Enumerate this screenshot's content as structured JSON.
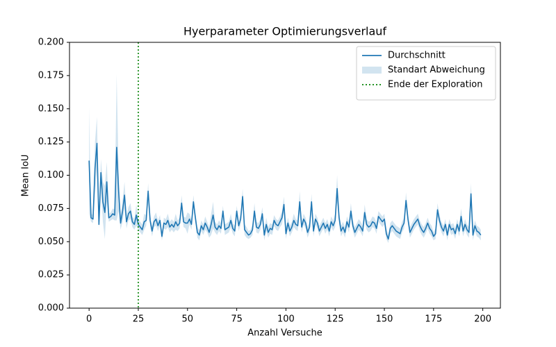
{
  "chart_data": {
    "type": "line",
    "title": "Hyerparameter Optimierungsverlauf",
    "xlabel": "Anzahl Versuche",
    "ylabel": "Mean IoU",
    "x": [
      0,
      1,
      2,
      3,
      4,
      5,
      6,
      7,
      8,
      9,
      10,
      11,
      12,
      13,
      14,
      15,
      16,
      17,
      18,
      19,
      20,
      21,
      22,
      23,
      24,
      25,
      26,
      27,
      28,
      29,
      30,
      31,
      32,
      33,
      34,
      35,
      36,
      37,
      38,
      39,
      40,
      41,
      42,
      43,
      44,
      45,
      46,
      47,
      48,
      49,
      50,
      51,
      52,
      53,
      54,
      55,
      56,
      57,
      58,
      59,
      60,
      61,
      62,
      63,
      64,
      65,
      66,
      67,
      68,
      69,
      70,
      71,
      72,
      73,
      74,
      75,
      76,
      77,
      78,
      79,
      80,
      81,
      82,
      83,
      84,
      85,
      86,
      87,
      88,
      89,
      90,
      91,
      92,
      93,
      94,
      95,
      96,
      97,
      98,
      99,
      100,
      101,
      102,
      103,
      104,
      105,
      106,
      107,
      108,
      109,
      110,
      111,
      112,
      113,
      114,
      115,
      116,
      117,
      118,
      119,
      120,
      121,
      122,
      123,
      124,
      125,
      126,
      127,
      128,
      129,
      130,
      131,
      132,
      133,
      134,
      135,
      136,
      137,
      138,
      139,
      140,
      141,
      142,
      143,
      144,
      145,
      146,
      147,
      148,
      149,
      150,
      151,
      152,
      153,
      154,
      155,
      156,
      157,
      158,
      159,
      160,
      161,
      162,
      163,
      164,
      165,
      166,
      167,
      168,
      169,
      170,
      171,
      172,
      173,
      174,
      175,
      176,
      177,
      178,
      179,
      180,
      181,
      182,
      183,
      184,
      185,
      186,
      187,
      188,
      189,
      190,
      191,
      192,
      193,
      194,
      195,
      196,
      197,
      198,
      199
    ],
    "series": [
      {
        "name": "Durchschnitt",
        "color": "#1f77b4",
        "values": [
          0.111,
          0.068,
          0.067,
          0.105,
          0.124,
          0.063,
          0.102,
          0.08,
          0.072,
          0.095,
          0.068,
          0.069,
          0.071,
          0.07,
          0.121,
          0.088,
          0.064,
          0.073,
          0.085,
          0.065,
          0.071,
          0.073,
          0.065,
          0.063,
          0.07,
          0.063,
          0.061,
          0.059,
          0.065,
          0.066,
          0.088,
          0.066,
          0.058,
          0.065,
          0.067,
          0.062,
          0.066,
          0.054,
          0.064,
          0.063,
          0.066,
          0.061,
          0.063,
          0.061,
          0.065,
          0.062,
          0.064,
          0.079,
          0.065,
          0.064,
          0.064,
          0.067,
          0.063,
          0.08,
          0.068,
          0.057,
          0.055,
          0.062,
          0.059,
          0.064,
          0.061,
          0.057,
          0.063,
          0.07,
          0.061,
          0.059,
          0.062,
          0.06,
          0.073,
          0.059,
          0.06,
          0.061,
          0.066,
          0.06,
          0.058,
          0.073,
          0.062,
          0.067,
          0.084,
          0.059,
          0.057,
          0.055,
          0.056,
          0.059,
          0.073,
          0.061,
          0.06,
          0.063,
          0.071,
          0.055,
          0.063,
          0.057,
          0.06,
          0.059,
          0.066,
          0.063,
          0.062,
          0.065,
          0.068,
          0.078,
          0.056,
          0.064,
          0.058,
          0.061,
          0.066,
          0.063,
          0.062,
          0.08,
          0.061,
          0.067,
          0.064,
          0.057,
          0.061,
          0.08,
          0.058,
          0.067,
          0.064,
          0.058,
          0.061,
          0.064,
          0.06,
          0.063,
          0.058,
          0.065,
          0.062,
          0.066,
          0.09,
          0.068,
          0.058,
          0.061,
          0.057,
          0.065,
          0.061,
          0.073,
          0.062,
          0.057,
          0.06,
          0.063,
          0.061,
          0.058,
          0.072,
          0.063,
          0.061,
          0.062,
          0.065,
          0.064,
          0.06,
          0.069,
          0.067,
          0.065,
          0.067,
          0.056,
          0.052,
          0.06,
          0.062,
          0.06,
          0.058,
          0.057,
          0.056,
          0.061,
          0.064,
          0.081,
          0.067,
          0.057,
          0.06,
          0.063,
          0.065,
          0.067,
          0.062,
          0.059,
          0.057,
          0.06,
          0.064,
          0.06,
          0.058,
          0.054,
          0.056,
          0.074,
          0.066,
          0.061,
          0.058,
          0.063,
          0.055,
          0.063,
          0.059,
          0.06,
          0.056,
          0.063,
          0.058,
          0.069,
          0.058,
          0.063,
          0.059,
          0.057,
          0.086,
          0.055,
          0.062,
          0.058,
          0.057,
          0.055
        ]
      },
      {
        "name": "Standart Abweichung",
        "color": "#1f77b4",
        "values": [
          0.04,
          0.003,
          0.003,
          0.02,
          0.02,
          0.003,
          0.01,
          0.015,
          0.02,
          0.015,
          0.003,
          0.003,
          0.004,
          0.004,
          0.055,
          0.015,
          0.005,
          0.008,
          0.01,
          0.005,
          0.005,
          0.006,
          0.004,
          0.004,
          0.008,
          0.004,
          0.004,
          0.004,
          0.006,
          0.004,
          0.006,
          0.004,
          0.004,
          0.004,
          0.005,
          0.004,
          0.004,
          0.003,
          0.004,
          0.004,
          0.005,
          0.004,
          0.004,
          0.004,
          0.006,
          0.004,
          0.004,
          0.006,
          0.004,
          0.004,
          0.008,
          0.004,
          0.004,
          0.005,
          0.004,
          0.004,
          0.004,
          0.004,
          0.004,
          0.005,
          0.004,
          0.004,
          0.008,
          0.01,
          0.004,
          0.004,
          0.004,
          0.004,
          0.004,
          0.004,
          0.004,
          0.004,
          0.005,
          0.004,
          0.004,
          0.004,
          0.004,
          0.004,
          0.006,
          0.004,
          0.004,
          0.003,
          0.003,
          0.004,
          0.006,
          0.004,
          0.004,
          0.004,
          0.005,
          0.004,
          0.005,
          0.004,
          0.004,
          0.004,
          0.004,
          0.004,
          0.004,
          0.004,
          0.005,
          0.006,
          0.004,
          0.004,
          0.004,
          0.004,
          0.005,
          0.004,
          0.004,
          0.008,
          0.004,
          0.004,
          0.004,
          0.004,
          0.004,
          0.006,
          0.004,
          0.004,
          0.004,
          0.004,
          0.004,
          0.004,
          0.004,
          0.004,
          0.004,
          0.004,
          0.004,
          0.005,
          0.01,
          0.005,
          0.004,
          0.004,
          0.004,
          0.004,
          0.004,
          0.006,
          0.004,
          0.004,
          0.004,
          0.004,
          0.004,
          0.004,
          0.006,
          0.004,
          0.004,
          0.004,
          0.004,
          0.004,
          0.004,
          0.004,
          0.004,
          0.004,
          0.004,
          0.004,
          0.003,
          0.004,
          0.004,
          0.004,
          0.004,
          0.004,
          0.004,
          0.004,
          0.004,
          0.006,
          0.004,
          0.004,
          0.004,
          0.004,
          0.004,
          0.004,
          0.004,
          0.004,
          0.004,
          0.004,
          0.004,
          0.004,
          0.004,
          0.003,
          0.004,
          0.005,
          0.004,
          0.004,
          0.004,
          0.004,
          0.004,
          0.004,
          0.004,
          0.004,
          0.004,
          0.004,
          0.004,
          0.006,
          0.004,
          0.004,
          0.004,
          0.004,
          0.008,
          0.004,
          0.004,
          0.004,
          0.004,
          0.004
        ]
      }
    ],
    "vline": {
      "name": "Ende der Exploration",
      "x": 25,
      "color": "#008000"
    },
    "xlim": [
      -9.95,
      208.95
    ],
    "ylim": [
      0,
      0.2
    ],
    "xticks": [
      0,
      25,
      50,
      75,
      100,
      125,
      150,
      175,
      200
    ],
    "yticks": [
      {
        "value": 0,
        "label": "0.000"
      },
      {
        "value": 0.025,
        "label": "0.025"
      },
      {
        "value": 0.05,
        "label": "0.050"
      },
      {
        "value": 0.075,
        "label": "0.075"
      },
      {
        "value": 0.1,
        "label": "0.100"
      },
      {
        "value": 0.125,
        "label": "0.125"
      },
      {
        "value": 0.15,
        "label": "0.150"
      },
      {
        "value": 0.175,
        "label": "0.175"
      },
      {
        "value": 0.2,
        "label": "0.200"
      }
    ],
    "legend": "upper right",
    "grid": false
  }
}
